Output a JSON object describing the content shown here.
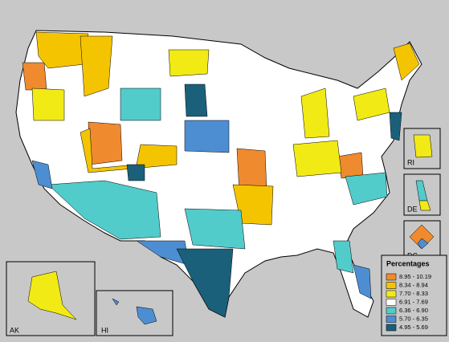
{
  "legend": {
    "title": "Percentages",
    "items": [
      {
        "label": "8.95 - 10.19",
        "color": "#ef8a2e"
      },
      {
        "label": "8.34 - 8.94",
        "color": "#f5c400"
      },
      {
        "label": "7.70 - 8.33",
        "color": "#f2ea14"
      },
      {
        "label": "6.91 - 7.69",
        "color": "#ffffff"
      },
      {
        "label": "6.36 - 6.90",
        "color": "#52cbcb"
      },
      {
        "label": "5.70 - 6.35",
        "color": "#4d8ed2"
      },
      {
        "label": "4.95 - 5.69",
        "color": "#1b607a"
      }
    ]
  },
  "insets": [
    "AK",
    "HI",
    "RI",
    "DE",
    "DC"
  ]
}
